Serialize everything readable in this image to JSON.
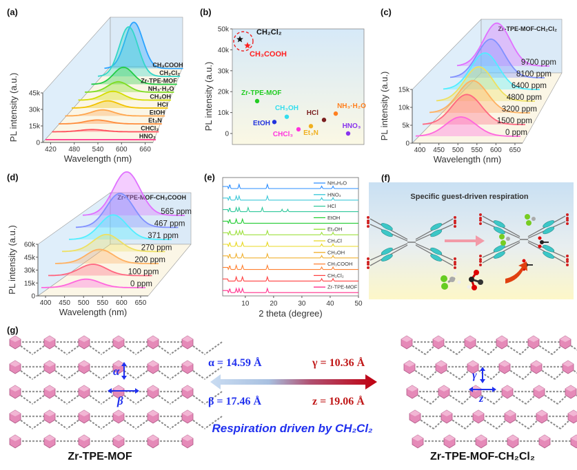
{
  "panel_labels": {
    "a": "(a)",
    "b": "(b)",
    "c": "(c)",
    "d": "(d)",
    "e": "(e)",
    "f": "(f)",
    "g": "(g)"
  },
  "chart_data": [
    {
      "id": "a",
      "type": "line",
      "style": "3d-waterfall",
      "xlabel": "Wavelength (nm)",
      "ylabel": "PL intensity (a.u.)",
      "xticks": [
        "420",
        "480",
        "540",
        "600",
        "660"
      ],
      "yticks": [
        "0",
        "15k",
        "30k",
        "45k"
      ],
      "xlim": [
        400,
        680
      ],
      "ylim": [
        0,
        45000
      ],
      "peak_nm": 505,
      "series": [
        {
          "name": "HNO₃",
          "peak": 0,
          "color": "#ff2d8a"
        },
        {
          "name": "CHCl₃",
          "peak": 2000,
          "color": "#ff4d5a"
        },
        {
          "name": "Et₃N",
          "peak": 3500,
          "color": "#ff8c3a"
        },
        {
          "name": "EtOH",
          "peak": 5500,
          "color": "#ffa64d"
        },
        {
          "name": "HCl",
          "peak": 6500,
          "color": "#f2c200"
        },
        {
          "name": "CH₃OH",
          "peak": 8000,
          "color": "#d4dc00"
        },
        {
          "name": "NH₃·H₂O",
          "peak": 9500,
          "color": "#7ddc1f"
        },
        {
          "name": "Zr-TPE-MOF",
          "peak": 15500,
          "color": "#22cc44"
        },
        {
          "name": "CH₂Cl₂",
          "peak": 45000,
          "color": "#33d6c8"
        },
        {
          "name": "CH₃COOH",
          "peak": 42000,
          "color": "#2aa3ff"
        }
      ]
    },
    {
      "id": "b",
      "type": "scatter",
      "ylabel": "PL intensity (a.u.)",
      "yticks": [
        "0",
        "10k",
        "20k",
        "30k",
        "40k",
        "50k"
      ],
      "ylim": [
        -3000,
        50000
      ],
      "grid": false,
      "points": [
        {
          "label": "CH₂Cl₂",
          "y": 45000,
          "marker": "star",
          "color": "#111111"
        },
        {
          "label": "CH₃COOH",
          "y": 42000,
          "marker": "star",
          "color": "#ff2020"
        },
        {
          "label": "Zr-TPE-MOF",
          "y": 15500,
          "marker": "circle",
          "color": "#22cc22"
        },
        {
          "label": "EtOH",
          "y": 5500,
          "marker": "circle",
          "color": "#2233dd"
        },
        {
          "label": "CH₃OH",
          "y": 8000,
          "marker": "circle",
          "color": "#33ddee"
        },
        {
          "label": "CHCl₃",
          "y": 2000,
          "marker": "circle",
          "color": "#ff33dd"
        },
        {
          "label": "Et₃N",
          "y": 3500,
          "marker": "circle",
          "color": "#f0b020"
        },
        {
          "label": "HCl",
          "y": 6500,
          "marker": "circle",
          "color": "#7a1f1f"
        },
        {
          "label": "NH₃·H₂O",
          "y": 9500,
          "marker": "circle",
          "color": "#ff8020"
        },
        {
          "label": "HNO₃",
          "y": 0,
          "marker": "circle",
          "color": "#8833ee"
        }
      ]
    },
    {
      "id": "c",
      "type": "line",
      "style": "3d-waterfall",
      "title": "Zr-TPE-MOF-CH₂Cl₂",
      "xlabel": "Wavelength (nm)",
      "ylabel": "PL intensity (a.u.)",
      "xticks": [
        "400",
        "450",
        "500",
        "550",
        "600",
        "650"
      ],
      "yticks": [
        "0",
        "5k",
        "10k",
        "15k"
      ],
      "xlim": [
        380,
        670
      ],
      "ylim": [
        0,
        15000
      ],
      "peak_nm": 505,
      "series": [
        {
          "name": "0 ppm",
          "peak": 4500,
          "color": "#ff66dd"
        },
        {
          "name": "1500 ppm",
          "peak": 7000,
          "color": "#ff6680"
        },
        {
          "name": "3200 ppm",
          "peak": 7500,
          "color": "#ffb060"
        },
        {
          "name": "4800 ppm",
          "peak": 8000,
          "color": "#eee060"
        },
        {
          "name": "6400 ppm",
          "peak": 8500,
          "color": "#50eeff"
        },
        {
          "name": "8100 ppm",
          "peak": 9000,
          "color": "#8090ff"
        },
        {
          "name": "9700 ppm",
          "peak": 10000,
          "color": "#e070ff"
        }
      ]
    },
    {
      "id": "d",
      "type": "line",
      "style": "3d-waterfall",
      "title": "Zr-TPE-MOF-CH₃COOH",
      "xlabel": "Wavelength (nm)",
      "ylabel": "PL intensity (a.u.)",
      "xticks": [
        "400",
        "450",
        "500",
        "550",
        "600",
        "650"
      ],
      "yticks": [
        "0",
        "15k",
        "30k",
        "45k",
        "60k"
      ],
      "xlim": [
        380,
        670
      ],
      "ylim": [
        0,
        60000
      ],
      "peak_nm": 505,
      "series": [
        {
          "name": "0 ppm",
          "peak": 9000,
          "color": "#ff66dd"
        },
        {
          "name": "100 ppm",
          "peak": 12000,
          "color": "#ff6680"
        },
        {
          "name": "200 ppm",
          "peak": 15000,
          "color": "#ffb060"
        },
        {
          "name": "270 ppm",
          "peak": 18000,
          "color": "#eee060"
        },
        {
          "name": "371 ppm",
          "peak": 26000,
          "color": "#50eeff"
        },
        {
          "name": "467 ppm",
          "peak": 36000,
          "color": "#8090ff"
        },
        {
          "name": "565 ppm",
          "peak": 46000,
          "color": "#e070ff"
        }
      ]
    },
    {
      "id": "e",
      "type": "line",
      "style": "stacked",
      "xlabel": "2 theta (degree)",
      "xticks": [
        "10",
        "20",
        "30",
        "40",
        "50"
      ],
      "xlim": [
        2,
        50
      ],
      "legend": "right",
      "series": [
        {
          "name": "NH₃H₂O",
          "color": "#2a8cff",
          "peaks": [
            4.5,
            7.8,
            17.8,
            37,
            41
          ]
        },
        {
          "name": "HNO₃",
          "color": "#3cc8d8",
          "peaks": [
            4.5,
            6.8,
            7.8,
            17.8,
            37,
            41
          ]
        },
        {
          "name": "HCl",
          "color": "#2ec79a",
          "peaks": [
            4.5,
            6.8,
            7.8,
            11,
            16,
            23,
            25
          ]
        },
        {
          "name": "EtOH",
          "color": "#22cc33",
          "peaks": [
            4.5,
            6.8,
            9
          ]
        },
        {
          "name": "Et₃OH",
          "color": "#9be03a",
          "peaks": [
            4.5,
            6.8,
            8,
            9,
            17.8,
            37,
            41
          ]
        },
        {
          "name": "CH₃Cl",
          "color": "#e8d820",
          "peaks": [
            4.5,
            6.8,
            9,
            17.8,
            37,
            41
          ]
        },
        {
          "name": "CH₃OH",
          "color": "#f0b030",
          "peaks": [
            4.5,
            6.8,
            9,
            17.8,
            37,
            41
          ]
        },
        {
          "name": "CH₃COOH",
          "color": "#ff8030",
          "peaks": [
            4.5,
            6.8,
            9,
            17.8,
            37,
            41
          ]
        },
        {
          "name": "CH₂Cl₂",
          "color": "#ff4040",
          "peaks": [
            6.8,
            9,
            17.8,
            37,
            41
          ]
        },
        {
          "name": "Zr-TPE-MOF",
          "color": "#ff2d8a",
          "peaks": [
            4.5,
            6.8,
            7.8,
            9,
            17.8
          ]
        }
      ]
    }
  ],
  "panel_f": {
    "title": "Specific guest-driven respiration"
  },
  "panel_g": {
    "left_label": "Zr-TPE-MOF",
    "right_label": "Zr-TPE-MOF-CH₂Cl₂",
    "alpha": "α = 14.59 Å",
    "beta": "β = 17.46 Å",
    "gamma": "γ = 10.36 Å",
    "z": "z = 19.06 Å",
    "caption": "Respiration driven by CH₂Cl₂",
    "sym_alpha": "α",
    "sym_beta": "β",
    "sym_gamma": "γ",
    "sym_z": "z",
    "colors": {
      "blue": "#2030ee",
      "red": "#c01818",
      "pink": "#e58ab8"
    }
  }
}
